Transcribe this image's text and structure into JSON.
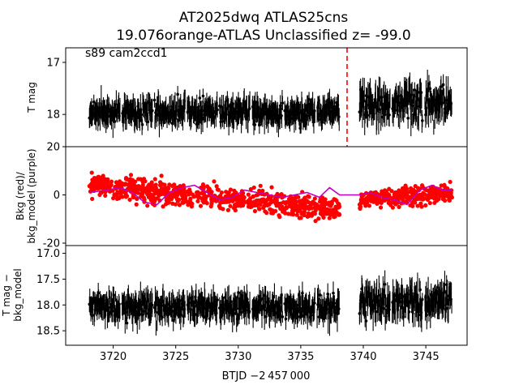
{
  "figure": {
    "title_line1": "AT2025dwq  ATLAS25cns",
    "title_line2": "19.076orange-ATLAS Unclassified z= -99.0",
    "xlabel": "BTJD −2 457 000"
  },
  "chart_data": [
    {
      "type": "scatter",
      "panel": "top",
      "annotation": "s89 cam2ccd1",
      "ylabel": "T mag",
      "y_inverted": true,
      "xlim": [
        3716.2,
        3748.3
      ],
      "ylim": [
        18.62,
        16.72
      ],
      "yticks": [
        17,
        18
      ],
      "marker_line_x": 3738.7,
      "marker_line_color": "#ff0000",
      "series": [
        {
          "color": "#000000",
          "segments": [
            {
              "x_start": 3718.1,
              "x_end": 3738.1,
              "y_center": 17.95,
              "y_spread": 0.33,
              "err": 0.17
            },
            {
              "x_start": 3739.7,
              "x_end": 3747.1,
              "y_center": 17.8,
              "y_spread": 0.45,
              "err": 0.2
            }
          ]
        }
      ]
    },
    {
      "type": "scatter",
      "panel": "middle",
      "ylabel": "Bkg (red)/ bkg_model (purple)",
      "ylabel_lines": [
        "Bkg (red)/",
        "bkg_model (purple)"
      ],
      "xlim": [
        3716.2,
        3748.3
      ],
      "ylim": [
        -21,
        20
      ],
      "yticks": [
        20,
        0,
        -20
      ],
      "series": [
        {
          "name": "Bkg",
          "color": "#ff0000",
          "segments": [
            {
              "x_start": 3718.1,
              "x_end": 3738.1,
              "y_start": 4,
              "y_end": -6,
              "y_spread": 6
            },
            {
              "x_start": 3739.7,
              "x_end": 3747.1,
              "y_start": -2,
              "y_end": 1,
              "y_spread": 5
            }
          ]
        },
        {
          "name": "bkg_model",
          "color": "#bf00bf",
          "x": [
            3718.1,
            3719.5,
            3720.5,
            3721.5,
            3722.5,
            3723.5,
            3724.5,
            3725.5,
            3726.5,
            3727.5,
            3728.5,
            3729.5,
            3730.5,
            3731.5,
            3732.5,
            3733.5,
            3734.5,
            3735.5,
            3736.5,
            3737.3,
            3738.1,
            3739.7,
            3740.5,
            3741.5,
            3742.5,
            3743.5,
            3744.5,
            3745.5,
            3746.3,
            3747.1
          ],
          "y": [
            1,
            2,
            3,
            1,
            -3,
            -4,
            1,
            3,
            4,
            1,
            -2,
            -1,
            2,
            1,
            0,
            -1,
            0,
            1,
            -1,
            3,
            0,
            0,
            1,
            -1,
            -2,
            -4,
            2,
            4,
            2,
            2
          ]
        }
      ]
    },
    {
      "type": "scatter",
      "panel": "bottom",
      "ylabel": "T mag − bkg_model",
      "ylabel_lines": [
        "T mag −",
        "bkg_model"
      ],
      "y_inverted": true,
      "xlim": [
        3716.2,
        3748.3
      ],
      "ylim": [
        18.78,
        16.85
      ],
      "yticks": [
        17.0,
        17.5,
        18.0,
        18.5
      ],
      "xticks": [
        3720,
        3725,
        3730,
        3735,
        3740,
        3745
      ],
      "series": [
        {
          "color": "#000000",
          "segments": [
            {
              "x_start": 3718.1,
              "x_end": 3738.1,
              "y_center": 18.05,
              "y_spread": 0.35,
              "err": 0.17
            },
            {
              "x_start": 3739.7,
              "x_end": 3747.1,
              "y_center": 17.95,
              "y_spread": 0.45,
              "err": 0.2
            }
          ]
        }
      ]
    }
  ]
}
